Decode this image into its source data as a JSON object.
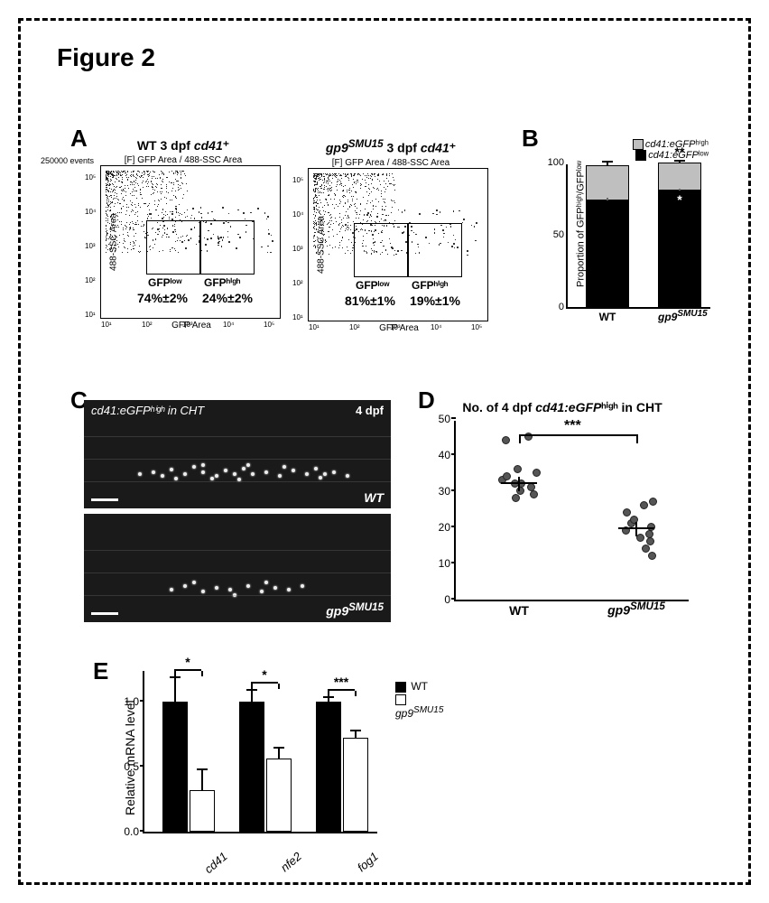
{
  "figure_title": "Figure 2",
  "panels": {
    "A": "A",
    "B": "B",
    "C": "C",
    "D": "D",
    "E": "E"
  },
  "colors": {
    "black": "#000000",
    "grey": "#bfbfbf",
    "white": "#ffffff",
    "micro_bg": "#1a1a1a",
    "dot_fill": "#555555"
  },
  "panelA": {
    "events_label": "250000 events",
    "subtitle": "[F] GFP Area / 488-SSC Area",
    "y_axis": "488-SSC Area",
    "x_axis": "GFP Area",
    "x_ticks": [
      "10¹",
      "10²",
      "10³",
      "10⁴",
      "10⁵"
    ],
    "y_ticks": [
      "10¹",
      "10²",
      "10³",
      "10⁴",
      "10⁵"
    ],
    "gate_low_label": "GFPˡᵒʷ",
    "gate_high_label": "GFPʰⁱᵍʰ",
    "plots": [
      {
        "title_html": "WT 3 dpf <i>cd41</i>⁺",
        "low_pct": "74%±2%",
        "high_pct": "24%±2%"
      },
      {
        "title_html": "<i>gp9</i><sup><i>SMU15</i></sup> 3 dpf <i>cd41</i>⁺",
        "low_pct": "81%±1%",
        "high_pct": "19%±1%"
      }
    ]
  },
  "panelB": {
    "legend_high_html": "<i>cd41:eGFP</i>ʰⁱᵍʰ",
    "legend_low_html": "<i>cd41:eGFP</i>ˡᵒʷ",
    "y_label_html": "Proportion of GFPʰⁱᵍʰ/GFPˡᵒʷ<br>cells at 3 dpf (%)",
    "y_ticks": [
      0,
      50,
      100
    ],
    "x_labels": [
      "WT",
      "gp9ˢᴹᵁ¹⁵"
    ],
    "bars": [
      {
        "low": 74,
        "high": 24,
        "err_low": 2,
        "err_high": 2
      },
      {
        "low": 81,
        "high": 19,
        "err_low": 1,
        "err_high": 1
      }
    ],
    "sig_high": "**",
    "sig_low": "*"
  },
  "panelC": {
    "top_label_html": "<i>cd41:eGFP</i>ʰⁱᵍʰ in CHT",
    "timepoint": "4 dpf",
    "wt_label": "WT",
    "mut_label_html": "<i>gp9</i><sup><i>SMU15</i></sup>",
    "wt_dots": [
      [
        60,
        80
      ],
      [
        75,
        78
      ],
      [
        85,
        82
      ],
      [
        95,
        75
      ],
      [
        110,
        80
      ],
      [
        120,
        72
      ],
      [
        130,
        78
      ],
      [
        145,
        82
      ],
      [
        155,
        76
      ],
      [
        165,
        80
      ],
      [
        175,
        74
      ],
      [
        185,
        80
      ],
      [
        200,
        78
      ],
      [
        215,
        82
      ],
      [
        230,
        76
      ],
      [
        245,
        80
      ],
      [
        255,
        74
      ],
      [
        265,
        80
      ],
      [
        275,
        78
      ],
      [
        290,
        82
      ],
      [
        100,
        85
      ],
      [
        140,
        85
      ],
      [
        180,
        70
      ],
      [
        220,
        72
      ],
      [
        260,
        84
      ],
      [
        130,
        70
      ],
      [
        170,
        86
      ]
    ],
    "mut_dots": [
      [
        95,
        82
      ],
      [
        110,
        78
      ],
      [
        130,
        84
      ],
      [
        145,
        80
      ],
      [
        160,
        82
      ],
      [
        180,
        78
      ],
      [
        195,
        84
      ],
      [
        210,
        80
      ],
      [
        225,
        82
      ],
      [
        240,
        78
      ],
      [
        120,
        74
      ],
      [
        165,
        88
      ],
      [
        200,
        74
      ]
    ]
  },
  "panelD": {
    "title_html": "No. of 4 dpf <i>cd41:eGFP</i>ʰⁱᵍʰ in CHT",
    "sig": "***",
    "y_ticks": [
      0,
      10,
      20,
      30,
      40,
      50
    ],
    "ylim": [
      0,
      50
    ],
    "x_labels": [
      "WT",
      "gp9ˢᴹᵁ¹⁵"
    ],
    "groups": [
      {
        "mean": 32,
        "sem": 2,
        "points": [
          28,
          29,
          30,
          31,
          32,
          32,
          33,
          34,
          35,
          36,
          44,
          45
        ]
      },
      {
        "mean": 19.5,
        "sem": 2,
        "points": [
          12,
          14,
          16,
          17,
          18,
          19,
          20,
          21,
          22,
          24,
          26,
          27
        ]
      }
    ]
  },
  "panelE": {
    "y_label": "Relative mRNA level",
    "y_ticks": [
      0,
      0.5,
      1.0
    ],
    "ylim": [
      0,
      1.25
    ],
    "genes": [
      "cd41",
      "nfe2",
      "fog1"
    ],
    "legend": {
      "wt": "WT",
      "mut_html": "<i>gp9</i><sup><i>SMU15</i></sup>"
    },
    "data": [
      {
        "wt": 1.0,
        "wt_err": 0.18,
        "mut": 0.32,
        "mut_err": 0.15,
        "sig": "*"
      },
      {
        "wt": 1.0,
        "wt_err": 0.08,
        "mut": 0.56,
        "mut_err": 0.08,
        "sig": "*"
      },
      {
        "wt": 1.0,
        "wt_err": 0.03,
        "mut": 0.72,
        "mut_err": 0.05,
        "sig": "***"
      }
    ]
  }
}
